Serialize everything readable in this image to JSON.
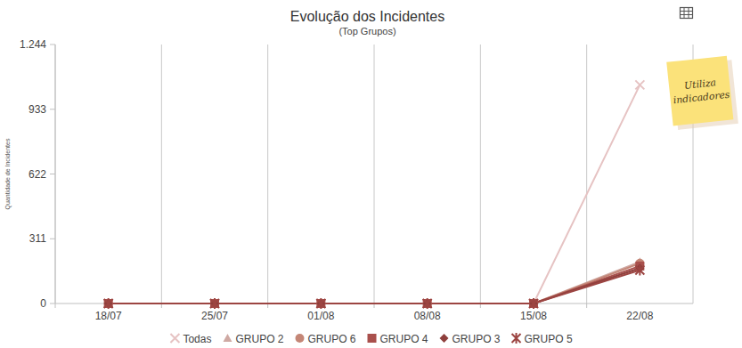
{
  "chart_data": {
    "type": "line",
    "title": "Evolução dos Incidentes",
    "subtitle": "(Top Grupos)",
    "y_label": "Quantidade de Incidentes",
    "annotations": [
      "Utiliza indicadores"
    ],
    "categories": [
      "18/07",
      "25/07",
      "01/08",
      "08/08",
      "15/08",
      "22/08"
    ],
    "series": [
      {
        "name": "Todas",
        "color": "#e6c3c3",
        "marker": "x",
        "values": [
          0,
          0,
          0,
          0,
          0,
          1050
        ]
      },
      {
        "name": "GRUPO 2",
        "color": "#cfa9a3",
        "marker": "triangle",
        "values": [
          0,
          0,
          0,
          0,
          0,
          200
        ]
      },
      {
        "name": "GRUPO 6",
        "color": "#c48676",
        "marker": "circle",
        "values": [
          0,
          0,
          0,
          0,
          0,
          193
        ]
      },
      {
        "name": "GRUPO 4",
        "color": "#a9504c",
        "marker": "square",
        "values": [
          0,
          0,
          0,
          0,
          0,
          180
        ]
      },
      {
        "name": "GRUPO 3",
        "color": "#8e3f3c",
        "marker": "diamond",
        "values": [
          0,
          0,
          0,
          0,
          0,
          170
        ]
      },
      {
        "name": "GRUPO 5",
        "color": "#9c4542",
        "marker": "asterisk",
        "values": [
          0,
          0,
          0,
          0,
          0,
          160
        ]
      }
    ],
    "ylim": [
      0,
      1244
    ],
    "yticks": [
      0,
      311,
      622,
      933,
      {
        "value": 1244,
        "label": "1.244"
      }
    ],
    "grid": true,
    "legend": "bottom"
  }
}
